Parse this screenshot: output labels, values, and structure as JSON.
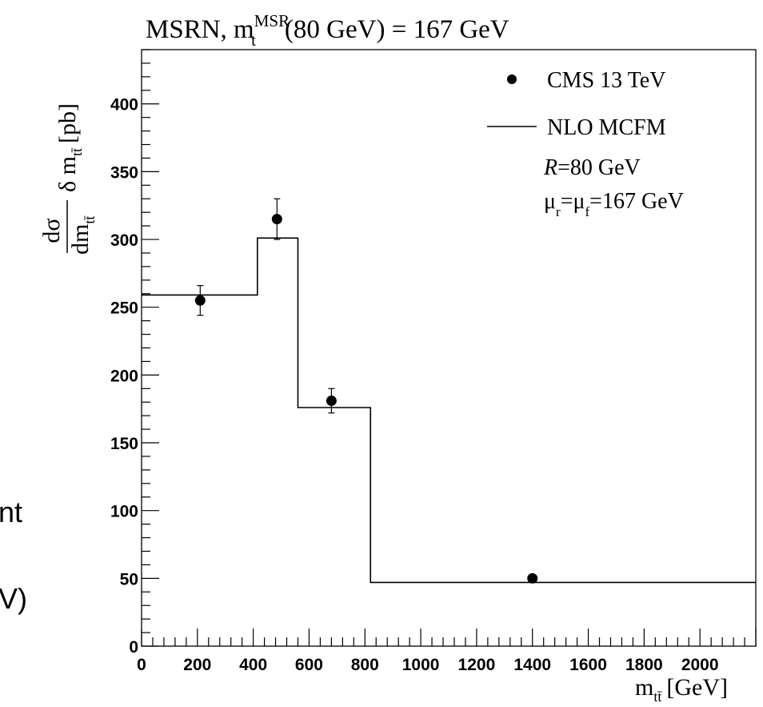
{
  "chart_data": {
    "type": "scatter",
    "title": "MSRN, m",
    "title_sup": "MSR",
    "title_sub": "t",
    "title_rest": "(80 GeV) = 167 GeV",
    "xlabel": "m",
    "xlabel_sub": "tt̄",
    "xlabel_unit": "[GeV]",
    "ylabel_num": "dσ",
    "ylabel_den": "dm",
    "ylabel_den_sub": "tt̄",
    "ylabel_rest": "δ m",
    "ylabel_rest_sub": "tt̄",
    "ylabel_unit": "[pb]",
    "xlim": [
      0,
      2200
    ],
    "ylim": [
      0,
      440
    ],
    "x_ticks": [
      0,
      200,
      400,
      600,
      800,
      1000,
      1200,
      1400,
      1600,
      1800,
      2000
    ],
    "y_ticks": [
      0,
      50,
      100,
      150,
      200,
      250,
      300,
      350,
      400
    ],
    "series": [
      {
        "name": "CMS 13 TeV",
        "kind": "points",
        "points": [
          {
            "x": 210,
            "y": 255,
            "err": 11
          },
          {
            "x": 485,
            "y": 315,
            "err": 15
          },
          {
            "x": 680,
            "y": 181,
            "err": 9
          },
          {
            "x": 1400,
            "y": 50,
            "err": 2
          }
        ]
      },
      {
        "name": "NLO MCFM",
        "kind": "step",
        "bins": [
          {
            "lo": 0,
            "hi": 415,
            "y": 259
          },
          {
            "lo": 415,
            "hi": 560,
            "y": 301
          },
          {
            "lo": 560,
            "hi": 820,
            "y": 176
          },
          {
            "lo": 820,
            "hi": 2200,
            "y": 47
          }
        ]
      }
    ],
    "legend": {
      "position": "top-right",
      "points_label": "CMS 13 TeV",
      "line_label": "NLO MCFM",
      "r_label": "R",
      "r_value": "=80 GeV",
      "mu_r": "μ",
      "mu_r_sub": "r",
      "mu_eq": "=μ",
      "mu_f_sub": "f",
      "mu_value": "=167 GeV"
    },
    "grid": false
  },
  "side_text": {
    "line1": "nt",
    "line2": "V)"
  },
  "colors": {
    "foreground": "#000000",
    "background": "#ffffff"
  }
}
